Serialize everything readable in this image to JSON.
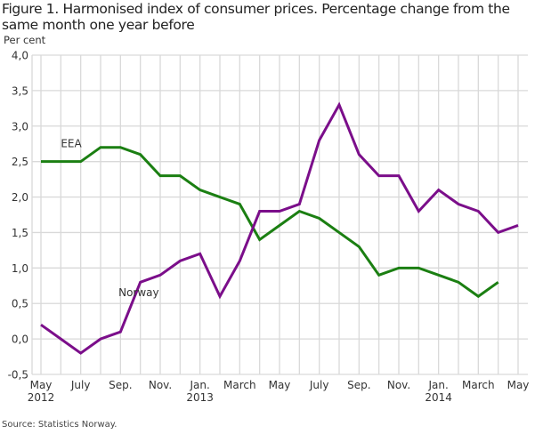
{
  "title": "Figure 1. Harmonised index of consumer prices. Percentage change from the same month one year before",
  "source": "Source: Statistics Norway.",
  "chart_data": {
    "type": "line",
    "title": "Figure 1. Harmonised index of consumer prices. Percentage change from the same month one year before",
    "ylabel": "Per cent",
    "xlabel": "",
    "ylim": [
      -0.5,
      4.0
    ],
    "yticks": [
      -0.5,
      0.0,
      0.5,
      1.0,
      1.5,
      2.0,
      2.5,
      3.0,
      3.5,
      4.0
    ],
    "ytick_labels": [
      "-0,5",
      "0,0",
      "0,5",
      "1,0",
      "1,5",
      "2,0",
      "2,5",
      "3,0",
      "3,5",
      "4,0"
    ],
    "grid": true,
    "x": [
      "2012-05",
      "2012-06",
      "2012-07",
      "2012-08",
      "2012-09",
      "2012-10",
      "2012-11",
      "2012-12",
      "2013-01",
      "2013-02",
      "2013-03",
      "2013-04",
      "2013-05",
      "2013-06",
      "2013-07",
      "2013-08",
      "2013-09",
      "2013-10",
      "2013-11",
      "2013-12",
      "2014-01",
      "2014-02",
      "2014-03",
      "2014-04",
      "2014-05"
    ],
    "xticks": [
      {
        "index": 0,
        "label": "May",
        "sub": "2012"
      },
      {
        "index": 2,
        "label": "July",
        "sub": ""
      },
      {
        "index": 4,
        "label": "Sep.",
        "sub": ""
      },
      {
        "index": 6,
        "label": "Nov.",
        "sub": ""
      },
      {
        "index": 8,
        "label": "Jan.",
        "sub": "2013"
      },
      {
        "index": 10,
        "label": "March",
        "sub": ""
      },
      {
        "index": 12,
        "label": "May",
        "sub": ""
      },
      {
        "index": 14,
        "label": "July",
        "sub": ""
      },
      {
        "index": 16,
        "label": "Sep.",
        "sub": ""
      },
      {
        "index": 18,
        "label": "Nov.",
        "sub": ""
      },
      {
        "index": 20,
        "label": "Jan.",
        "sub": "2014"
      },
      {
        "index": 22,
        "label": "March",
        "sub": ""
      },
      {
        "index": 24,
        "label": "May",
        "sub": ""
      }
    ],
    "series": [
      {
        "name": "EEA",
        "color": "#1b7f12",
        "label_anchor": {
          "index": 1,
          "value": 2.7
        },
        "values": [
          2.5,
          2.5,
          2.5,
          2.7,
          2.7,
          2.6,
          2.3,
          2.3,
          2.1,
          2.0,
          1.9,
          1.4,
          1.6,
          1.8,
          1.7,
          1.5,
          1.3,
          0.9,
          1.0,
          1.0,
          0.9,
          0.8,
          0.6,
          0.8,
          null
        ]
      },
      {
        "name": "Norway",
        "color": "#7b0e8a",
        "label_anchor": {
          "index": 3.9,
          "value": 0.6
        },
        "values": [
          0.2,
          0.0,
          -0.2,
          0.0,
          0.1,
          0.8,
          0.9,
          1.1,
          1.2,
          0.6,
          1.1,
          1.8,
          1.8,
          1.9,
          2.8,
          3.3,
          2.6,
          2.3,
          2.3,
          1.8,
          2.1,
          1.9,
          1.8,
          1.5,
          1.6
        ]
      }
    ],
    "legend": "inline-labels"
  }
}
